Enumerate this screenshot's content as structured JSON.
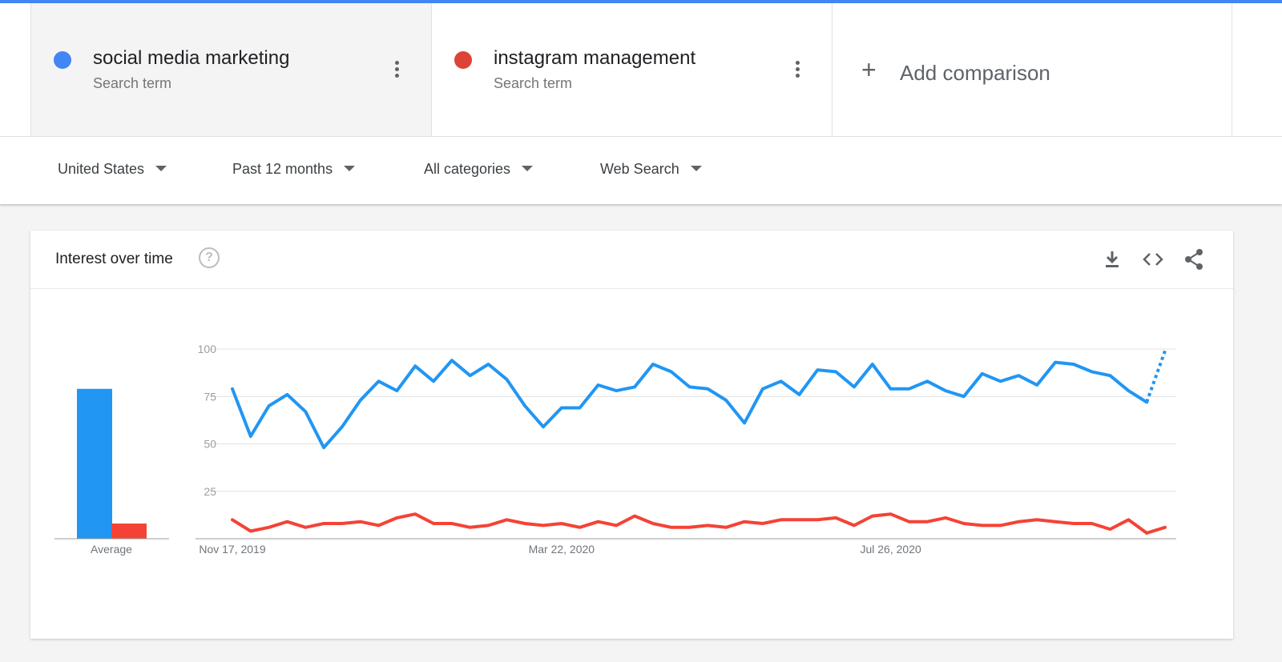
{
  "colors": {
    "accent": "#4285f4",
    "series1": "#2196f3",
    "series2": "#f44336"
  },
  "terms": [
    {
      "name": "social media marketing",
      "subtitle": "Search term",
      "color": "#4285f4"
    },
    {
      "name": "instagram management",
      "subtitle": "Search term",
      "color": "#db4437"
    }
  ],
  "add_comparison": {
    "label": "Add comparison",
    "icon": "plus-icon"
  },
  "filters": {
    "region": "United States",
    "time_range": "Past 12 months",
    "category": "All categories",
    "search_type": "Web Search"
  },
  "card": {
    "title": "Interest over time",
    "help_icon": "help-circle-icon",
    "actions": [
      "download-icon",
      "embed-code-icon",
      "share-icon"
    ]
  },
  "chart_data": {
    "type": "line",
    "ylim": [
      0,
      100
    ],
    "yticks": [
      25,
      50,
      75,
      100
    ],
    "xticks": [
      "Nov 17, 2019",
      "Mar 22, 2020",
      "Jul 26, 2020"
    ],
    "grid": true,
    "partial_last_point": true,
    "series": [
      {
        "name": "social media marketing",
        "color": "#2196f3",
        "values": [
          79,
          54,
          70,
          76,
          67,
          48,
          59,
          73,
          83,
          78,
          91,
          83,
          94,
          86,
          92,
          84,
          70,
          59,
          69,
          69,
          81,
          78,
          80,
          92,
          88,
          80,
          79,
          73,
          61,
          79,
          83,
          76,
          89,
          88,
          80,
          92,
          79,
          79,
          83,
          78,
          75,
          87,
          83,
          86,
          81,
          93,
          92,
          88,
          86,
          78,
          72,
          99
        ]
      },
      {
        "name": "instagram management",
        "color": "#f44336",
        "values": [
          10,
          4,
          6,
          9,
          6,
          8,
          8,
          9,
          7,
          11,
          13,
          8,
          8,
          6,
          7,
          10,
          8,
          7,
          8,
          6,
          9,
          7,
          12,
          8,
          6,
          6,
          7,
          6,
          9,
          8,
          10,
          10,
          10,
          11,
          7,
          12,
          13,
          9,
          9,
          11,
          8,
          7,
          7,
          9,
          10,
          9,
          8,
          8,
          5,
          10,
          3,
          6
        ]
      }
    ],
    "average": {
      "label": "Average",
      "values": [
        79,
        8
      ]
    }
  }
}
